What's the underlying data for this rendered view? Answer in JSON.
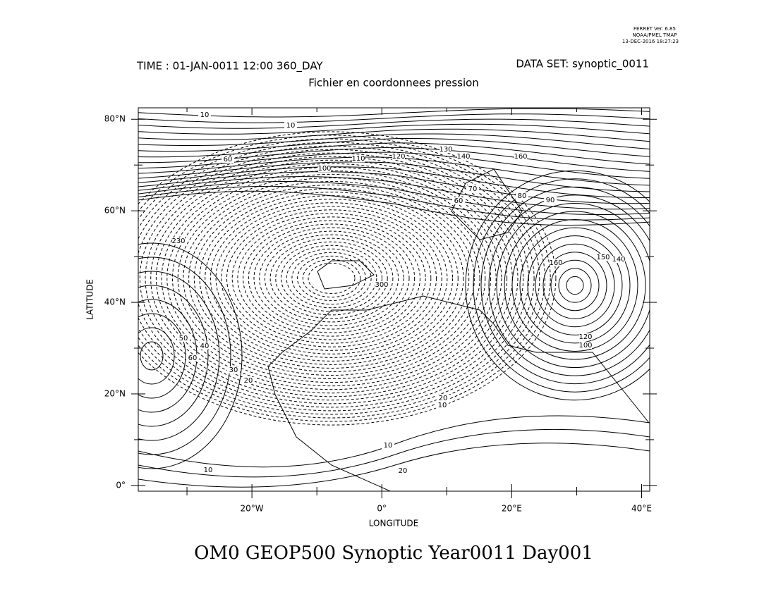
{
  "header": {
    "software": "FERRET Ver. 6.85",
    "institution": "NOAA/PMEL TMAP",
    "date": "13-DEC-2016 18:27:23",
    "time": "TIME : 01-JAN-0011 12:00 360_DAY",
    "dataset": "DATA SET: synoptic_0011",
    "subtitle": "Fichier en coordonnees pression"
  },
  "map": {
    "title": "OM0 GEOP500 Synoptic Year0011 Day001",
    "xlabel": "LONGITUDE",
    "ylabel": "LATITUDE",
    "xlim": [
      -37.5,
      41.25
    ],
    "ylim": [
      -1.25,
      82.5
    ],
    "xticks": [
      {
        "value": -20,
        "label": "20°W"
      },
      {
        "value": 0,
        "label": "0°"
      },
      {
        "value": 20,
        "label": "20°E"
      },
      {
        "value": 40,
        "label": "40°E"
      }
    ],
    "xticks_minor": [
      -30,
      -10,
      10,
      30
    ],
    "yticks": [
      {
        "value": 0,
        "label": "0°"
      },
      {
        "value": 20,
        "label": "20°N"
      },
      {
        "value": 40,
        "label": "40°N"
      },
      {
        "value": 60,
        "label": "60°N"
      },
      {
        "value": 80,
        "label": "80°N"
      }
    ],
    "yticks_minor": [
      10,
      30,
      50,
      70
    ],
    "contour_labels": [
      10,
      10,
      60,
      100,
      110,
      120,
      130,
      140,
      160,
      70,
      60,
      80,
      90,
      230,
      300,
      150,
      140,
      160,
      120,
      100,
      50,
      40,
      60,
      30,
      20,
      20,
      10,
      10,
      10,
      20
    ]
  }
}
